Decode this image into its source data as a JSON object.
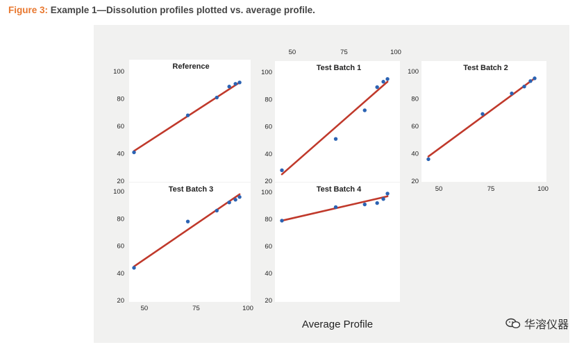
{
  "caption": {
    "figure_label": "Figure 3:",
    "text": " Example 1—Dissolution profiles plotted vs. average profile."
  },
  "watermark": {
    "text": "华溶仪器"
  },
  "colors": {
    "points": "#2b63b3",
    "fit_line": "#c0392b",
    "caption_accent": "#e8772e"
  },
  "chart_data": {
    "type": "scatter",
    "xlabel": "Average Profile",
    "x_ticks": [
      50,
      75,
      100
    ],
    "y_ticks": [
      20,
      40,
      60,
      80,
      100
    ],
    "grid": false,
    "panels": [
      {
        "key": "ref",
        "title": "Reference",
        "xlim": [
          45,
          100
        ],
        "ylim": [
          20,
          100
        ],
        "series": {
          "x": [
            45,
            71,
            85,
            91,
            94,
            96
          ],
          "y": [
            41,
            68,
            81,
            89,
            91,
            92
          ]
        },
        "fit": {
          "x": [
            45,
            96
          ],
          "y": [
            42,
            92
          ]
        }
      },
      {
        "key": "tb1",
        "title": "Test Batch 1",
        "xlim": [
          45,
          100
        ],
        "ylim": [
          20,
          100
        ],
        "series": {
          "x": [
            45,
            71,
            85,
            91,
            94,
            96
          ],
          "y": [
            28,
            51,
            72,
            89,
            93,
            95
          ]
        },
        "fit": {
          "x": [
            45,
            96
          ],
          "y": [
            25,
            93
          ]
        }
      },
      {
        "key": "tb2",
        "title": "Test Batch 2",
        "xlim": [
          45,
          100
        ],
        "ylim": [
          20,
          100
        ],
        "series": {
          "x": [
            45,
            71,
            85,
            91,
            94,
            96
          ],
          "y": [
            36,
            69,
            84,
            89,
            93,
            95
          ]
        },
        "fit": {
          "x": [
            45,
            96
          ],
          "y": [
            38,
            95
          ]
        }
      },
      {
        "key": "tb3",
        "title": "Test Batch 3",
        "xlim": [
          45,
          100
        ],
        "ylim": [
          20,
          100
        ],
        "series": {
          "x": [
            45,
            71,
            85,
            91,
            94,
            96
          ],
          "y": [
            44,
            78,
            86,
            92,
            94,
            96
          ]
        },
        "fit": {
          "x": [
            45,
            96
          ],
          "y": [
            45,
            98
          ]
        }
      },
      {
        "key": "tb4",
        "title": "Test Batch 4",
        "xlim": [
          45,
          100
        ],
        "ylim": [
          20,
          100
        ],
        "series": {
          "x": [
            45,
            71,
            85,
            91,
            94,
            96
          ],
          "y": [
            79,
            89,
            91,
            92,
            95,
            99
          ]
        },
        "fit": {
          "x": [
            45,
            96
          ],
          "y": [
            79,
            97
          ]
        }
      }
    ]
  }
}
